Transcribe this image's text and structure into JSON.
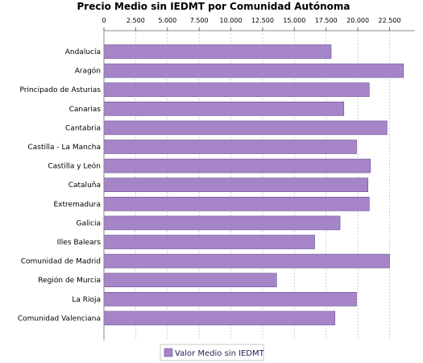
{
  "chart_data": {
    "type": "bar",
    "orientation": "horizontal",
    "title": "Precio Medio sin IEDMT por Comunidad Autónoma",
    "xlim": [
      0,
      24500
    ],
    "x_ticks": [
      0,
      2500,
      5000,
      7500,
      10000,
      12500,
      15000,
      17500,
      20000,
      22500
    ],
    "x_tick_labels": [
      "0",
      "2.500",
      "5.000",
      "7.500",
      "10.000",
      "12.500",
      "15.000",
      "17.500",
      "20.000",
      "22.500"
    ],
    "x_axis_position": "top",
    "grid": true,
    "legend_position": "bottom",
    "categories": [
      "Andalucía",
      "Aragón",
      "Principado de Asturias",
      "Canarias",
      "Cantabria",
      "Castilla - La Mancha",
      "Castilla y León",
      "Cataluña",
      "Extremadura",
      "Galicia",
      "Illes Balears",
      "Comunidad de Madrid",
      "Región de Murcia",
      "La Rioja",
      "Comunidad Valenciana"
    ],
    "series": [
      {
        "name": "Valor Medio sin IEDMT",
        "color": "#a585c8",
        "values": [
          17900,
          23600,
          20900,
          18900,
          22300,
          19900,
          21000,
          20800,
          20900,
          18600,
          16600,
          22500,
          13600,
          19900,
          18200
        ]
      }
    ]
  }
}
